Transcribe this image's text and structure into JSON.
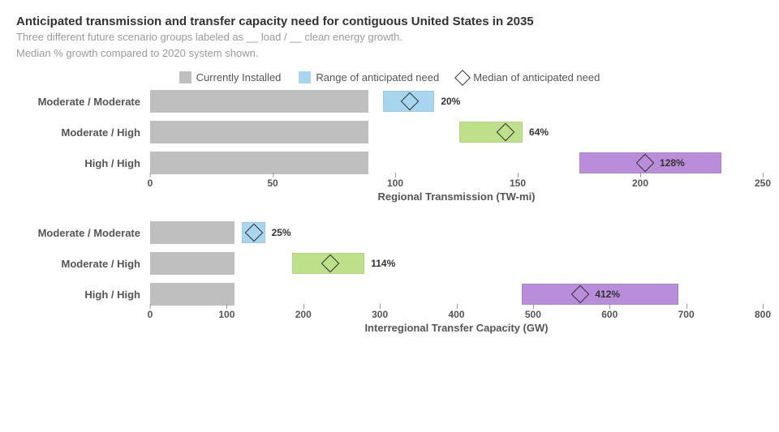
{
  "header": {
    "title": "Anticipated transmission and transfer capacity need for contiguous United States in 2035",
    "subtitle1": "Three different future scenario groups labeled as __ load / __ clean energy growth.",
    "subtitle2": "Median % growth compared to 2020 system shown."
  },
  "legend": {
    "installed": {
      "label": "Currently Installed",
      "color": "#bfbfbf"
    },
    "range": {
      "label": "Range of anticipated need",
      "color": "#a8d5ef"
    },
    "median": {
      "label": "Median of anticipated need"
    }
  },
  "colors": {
    "base_bar": "#bfbfbf",
    "series": [
      "#a8d5ef",
      "#bfe08b",
      "#b98dd9"
    ],
    "text": "#555555",
    "marker_border": "#333333"
  },
  "chart1": {
    "axis_label": "Regional Transmission (TW-mi)",
    "xmin": 0,
    "xmax": 250,
    "tick_step": 50,
    "ticks": [
      "0",
      "50",
      "100",
      "150",
      "200",
      "250"
    ],
    "base_value": 89,
    "rows": [
      {
        "label": "Moderate / Moderate",
        "range_start": 95,
        "range_end": 116,
        "median": 106,
        "pct": "20%",
        "color": "#a8d5ef"
      },
      {
        "label": "Moderate / High",
        "range_start": 126,
        "range_end": 152,
        "median": 145,
        "pct": "64%",
        "color": "#bfe08b"
      },
      {
        "label": "High / High",
        "range_start": 175,
        "range_end": 233,
        "median": 202,
        "pct": "128%",
        "color": "#b98dd9"
      }
    ]
  },
  "chart2": {
    "axis_label": "Interregional Transfer Capacity (GW)",
    "xmin": 0,
    "xmax": 800,
    "tick_step": 100,
    "ticks": [
      "0",
      "100",
      "200",
      "300",
      "400",
      "500",
      "600",
      "700",
      "800"
    ],
    "base_value": 110,
    "rows": [
      {
        "label": "Moderate / Moderate",
        "range_start": 120,
        "range_end": 150,
        "median": 136,
        "pct": "25%",
        "color": "#a8d5ef"
      },
      {
        "label": "Moderate / High",
        "range_start": 185,
        "range_end": 280,
        "median": 235,
        "pct": "114%",
        "color": "#bfe08b"
      },
      {
        "label": "High / High",
        "range_start": 485,
        "range_end": 690,
        "median": 562,
        "pct": "412%",
        "color": "#b98dd9"
      }
    ]
  }
}
